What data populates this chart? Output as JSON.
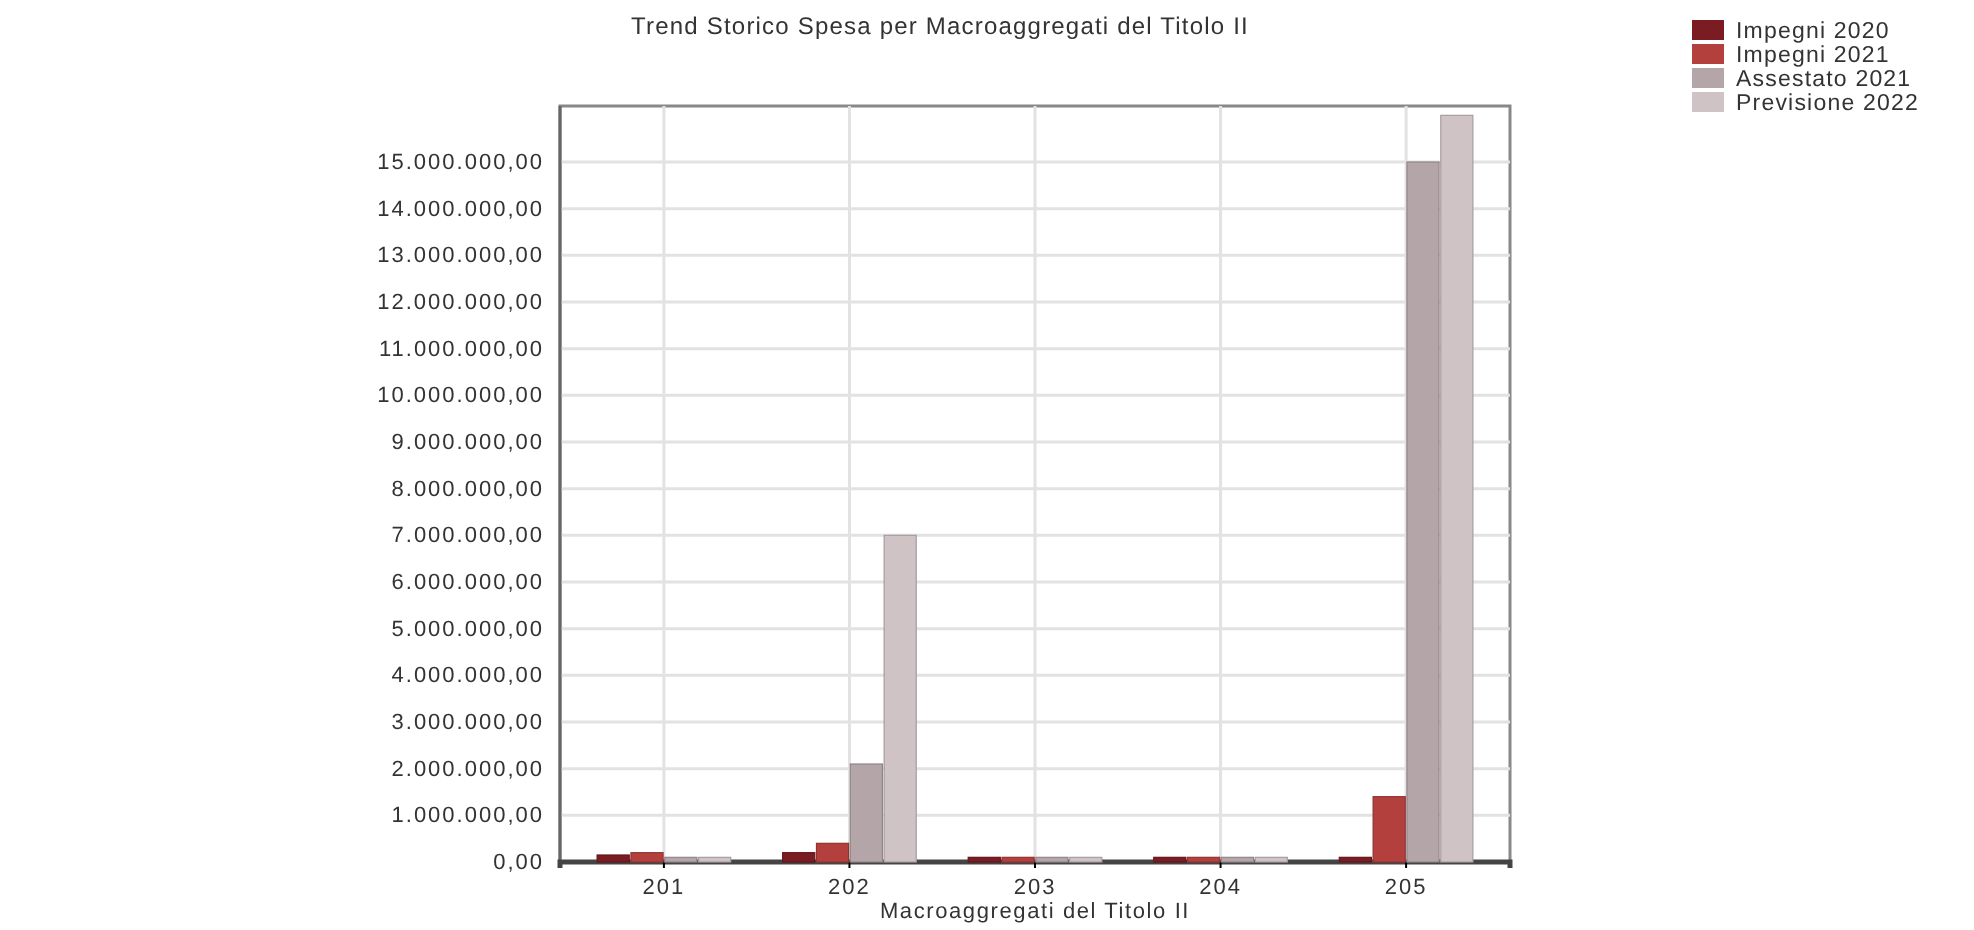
{
  "chart_data": {
    "type": "bar",
    "title": "Trend Storico Spesa per Macroaggregati del Titolo II",
    "xlabel": "Macroaggregati del Titolo II",
    "categories": [
      "201",
      "202",
      "203",
      "204",
      "205"
    ],
    "series": [
      {
        "name": "Impegni 2020",
        "color": "#7a1c22",
        "values": [
          150000,
          200000,
          100000,
          100000,
          100000
        ]
      },
      {
        "name": "Impegni 2021",
        "color": "#b4403e",
        "values": [
          200000,
          400000,
          100000,
          100000,
          1400000
        ]
      },
      {
        "name": "Assestato 2021",
        "color": "#b3a5a8",
        "values": [
          100000,
          2100000,
          100000,
          100000,
          15000000
        ]
      },
      {
        "name": "Previsione 2022",
        "color": "#cfc3c5",
        "values": [
          100000,
          7000000,
          100000,
          100000,
          16000000
        ]
      }
    ],
    "ylim": [
      0,
      16200000
    ],
    "yticks": [
      {
        "value": 0,
        "label": "0,00"
      },
      {
        "value": 1000000,
        "label": "1.000.000,00"
      },
      {
        "value": 2000000,
        "label": "2.000.000,00"
      },
      {
        "value": 3000000,
        "label": "3.000.000,00"
      },
      {
        "value": 4000000,
        "label": "4.000.000,00"
      },
      {
        "value": 5000000,
        "label": "5.000.000,00"
      },
      {
        "value": 6000000,
        "label": "6.000.000,00"
      },
      {
        "value": 7000000,
        "label": "7.000.000,00"
      },
      {
        "value": 8000000,
        "label": "8.000.000,00"
      },
      {
        "value": 9000000,
        "label": "9.000.000,00"
      },
      {
        "value": 10000000,
        "label": "10.000.000,00"
      },
      {
        "value": 11000000,
        "label": "11.000.000,00"
      },
      {
        "value": 12000000,
        "label": "12.000.000,00"
      },
      {
        "value": 13000000,
        "label": "13.000.000,00"
      },
      {
        "value": 14000000,
        "label": "14.000.000,00"
      },
      {
        "value": 15000000,
        "label": "15.000.000,00"
      }
    ],
    "grid": true,
    "legend": "top right"
  }
}
